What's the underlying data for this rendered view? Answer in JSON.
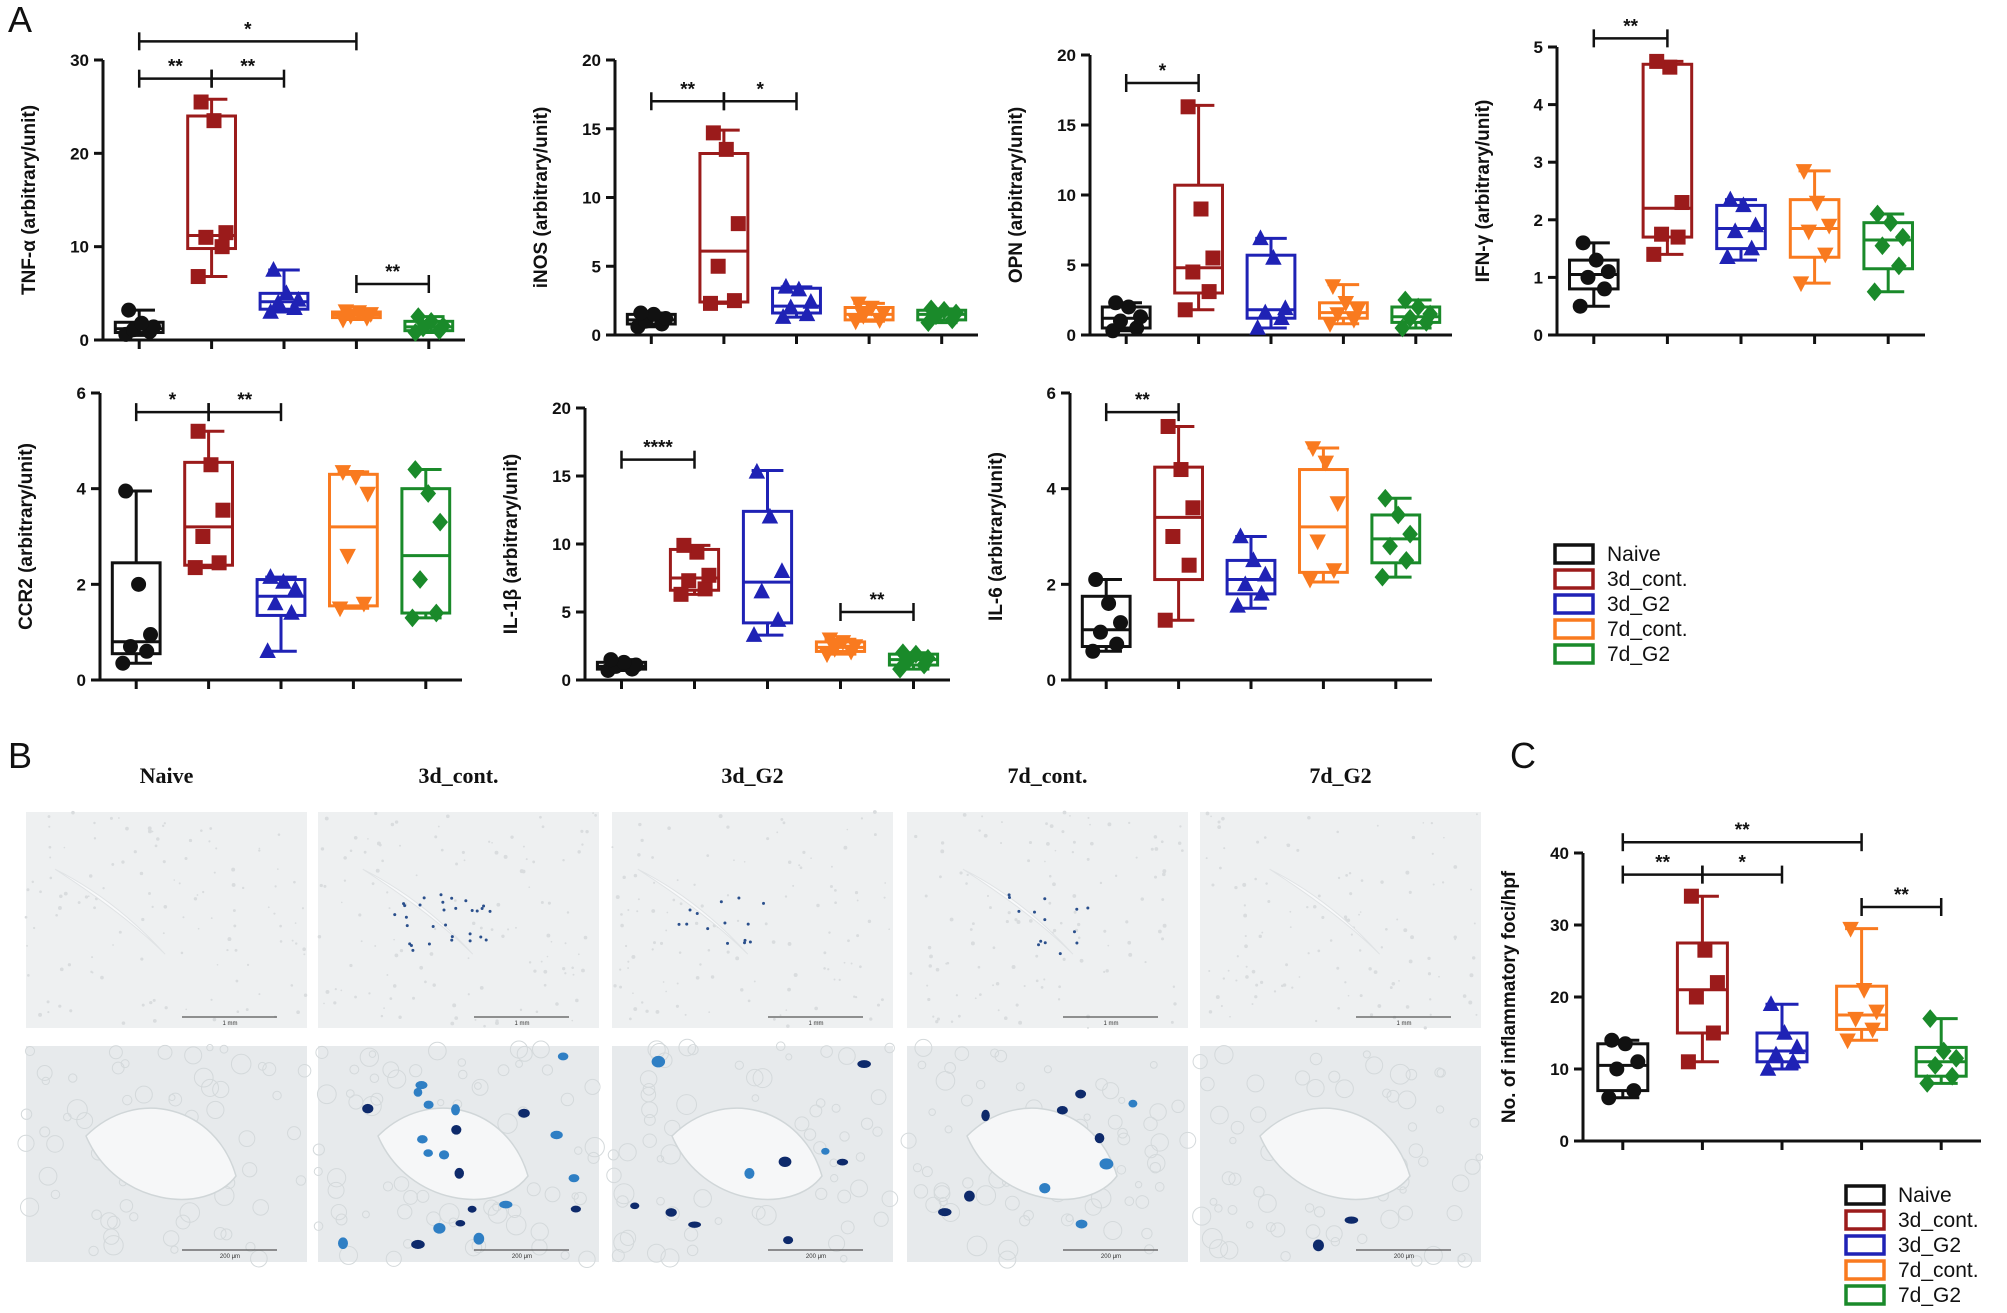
{
  "panels": {
    "A": "A",
    "B": "B",
    "C": "C"
  },
  "colors": {
    "Naive": "#111111",
    "3d_cont.": "#9b1b1b",
    "3d_G2": "#1f22b5",
    "7d_cont.": "#f97a1f",
    "7d_G2": "#1a8a2a"
  },
  "legend_A": [
    "Naive",
    "3d_cont.",
    "3d_G2",
    "7d_cont.",
    "7d_G2"
  ],
  "legend_C": [
    "Naive",
    "3d_cont.",
    "3d_G2",
    "7d_cont.",
    "7d_G2"
  ],
  "micrographs": {
    "titles": [
      "Naive",
      "3d_cont.",
      "3d_G2",
      "7d_cont.",
      "7d_G2"
    ],
    "scale_top": "1 mm",
    "scale_bottom": "200 μm"
  },
  "chart_data": [
    {
      "id": "tnf",
      "type": "box",
      "ylabel": "TNF-α (arbitrary/unit)",
      "ylim": [
        0,
        30
      ],
      "yticks": [
        0,
        10,
        20,
        30
      ],
      "groups": [
        {
          "name": "Naive",
          "marker": "circle",
          "min": 0.5,
          "q1": 0.8,
          "median": 1.2,
          "q3": 1.9,
          "max": 3.2,
          "points": [
            0.6,
            0.9,
            1.1,
            1.4,
            1.8,
            3.2
          ]
        },
        {
          "name": "3d_cont.",
          "marker": "square",
          "min": 6.8,
          "q1": 9.8,
          "median": 11.2,
          "q3": 24.0,
          "max": 25.8,
          "points": [
            6.8,
            10.0,
            11.0,
            11.5,
            23.5,
            25.5
          ]
        },
        {
          "name": "3d_G2",
          "marker": "triangle-up",
          "min": 3.0,
          "q1": 3.3,
          "median": 4.1,
          "q3": 5.0,
          "max": 7.5,
          "points": [
            3.0,
            3.4,
            4.0,
            4.3,
            5.0,
            7.5
          ]
        },
        {
          "name": "7d_cont.",
          "marker": "triangle-down",
          "min": 2.2,
          "q1": 2.4,
          "median": 2.7,
          "q3": 3.0,
          "max": 3.1,
          "points": [
            2.2,
            2.4,
            2.6,
            2.8,
            3.0,
            3.1
          ]
        },
        {
          "name": "7d_G2",
          "marker": "diamond",
          "min": 0.8,
          "q1": 1.0,
          "median": 1.4,
          "q3": 2.0,
          "max": 2.5,
          "points": [
            0.8,
            1.0,
            1.3,
            1.5,
            2.0,
            2.5
          ]
        }
      ],
      "significance": [
        {
          "from": 0,
          "to": 1,
          "label": "**",
          "y": 28.0
        },
        {
          "from": 1,
          "to": 2,
          "label": "**",
          "y": 28.0
        },
        {
          "from": 0,
          "to": 3,
          "label": "*",
          "y": 32.0
        },
        {
          "from": 3,
          "to": 4,
          "label": "**",
          "y": 6.0
        }
      ]
    },
    {
      "id": "inos",
      "type": "box",
      "ylabel": "iNOS (arbitrary/unit)",
      "ylim": [
        0,
        20
      ],
      "yticks": [
        0,
        5,
        10,
        15,
        20
      ],
      "groups": [
        {
          "name": "Naive",
          "marker": "circle",
          "min": 0.6,
          "q1": 0.8,
          "median": 1.1,
          "q3": 1.5,
          "max": 1.6,
          "points": [
            0.6,
            0.8,
            1.0,
            1.2,
            1.5,
            1.6
          ]
        },
        {
          "name": "3d_cont.",
          "marker": "square",
          "min": 2.3,
          "q1": 2.4,
          "median": 6.1,
          "q3": 13.2,
          "max": 14.9,
          "points": [
            2.3,
            2.5,
            5.0,
            8.1,
            13.5,
            14.7
          ]
        },
        {
          "name": "3d_G2",
          "marker": "triangle-up",
          "min": 1.3,
          "q1": 1.6,
          "median": 2.1,
          "q3": 3.4,
          "max": 3.5,
          "points": [
            1.3,
            1.5,
            2.0,
            2.4,
            3.3,
            3.5
          ]
        },
        {
          "name": "7d_cont.",
          "marker": "triangle-down",
          "min": 1.0,
          "q1": 1.1,
          "median": 1.5,
          "q3": 2.0,
          "max": 2.3,
          "points": [
            1.0,
            1.1,
            1.4,
            1.6,
            2.0,
            2.3
          ]
        },
        {
          "name": "7d_G2",
          "marker": "diamond",
          "min": 0.9,
          "q1": 1.1,
          "median": 1.5,
          "q3": 1.8,
          "max": 1.9,
          "points": [
            0.9,
            1.1,
            1.4,
            1.6,
            1.8,
            1.9
          ]
        }
      ],
      "significance": [
        {
          "from": 0,
          "to": 1,
          "label": "**",
          "y": 17.0
        },
        {
          "from": 1,
          "to": 2,
          "label": "*",
          "y": 17.0
        }
      ]
    },
    {
      "id": "opn",
      "type": "box",
      "ylabel": "OPN (arbitrary/unit)",
      "ylim": [
        0,
        20
      ],
      "yticks": [
        0,
        5,
        10,
        15,
        20
      ],
      "groups": [
        {
          "name": "Naive",
          "marker": "circle",
          "min": 0.3,
          "q1": 0.5,
          "median": 1.2,
          "q3": 2.0,
          "max": 2.3,
          "points": [
            0.3,
            0.5,
            1.0,
            1.3,
            2.0,
            2.3
          ]
        },
        {
          "name": "3d_cont.",
          "marker": "square",
          "min": 1.8,
          "q1": 3.0,
          "median": 4.8,
          "q3": 10.7,
          "max": 16.4,
          "points": [
            1.8,
            3.1,
            4.5,
            5.5,
            9.0,
            16.3
          ]
        },
        {
          "name": "3d_G2",
          "marker": "triangle-up",
          "min": 0.5,
          "q1": 1.2,
          "median": 1.8,
          "q3": 5.7,
          "max": 6.9,
          "points": [
            0.5,
            1.2,
            1.6,
            1.9,
            5.5,
            6.9
          ]
        },
        {
          "name": "7d_cont.",
          "marker": "triangle-down",
          "min": 0.8,
          "q1": 1.2,
          "median": 1.6,
          "q3": 2.3,
          "max": 3.6,
          "points": [
            0.8,
            1.1,
            1.5,
            1.8,
            2.3,
            3.5
          ]
        },
        {
          "name": "7d_G2",
          "marker": "diamond",
          "min": 0.5,
          "q1": 0.9,
          "median": 1.3,
          "q3": 2.0,
          "max": 2.5,
          "points": [
            0.5,
            0.9,
            1.2,
            1.5,
            2.0,
            2.5
          ]
        }
      ],
      "significance": [
        {
          "from": 0,
          "to": 1,
          "label": "*",
          "y": 18.0
        }
      ]
    },
    {
      "id": "ifn",
      "type": "box",
      "ylabel": "IFN-γ (arbitrary/unit)",
      "ylim": [
        0,
        5
      ],
      "yticks": [
        0,
        1,
        2,
        3,
        4,
        5
      ],
      "groups": [
        {
          "name": "Naive",
          "marker": "circle",
          "min": 0.5,
          "q1": 0.8,
          "median": 1.05,
          "q3": 1.3,
          "max": 1.6,
          "points": [
            0.5,
            0.8,
            1.0,
            1.1,
            1.3,
            1.6
          ]
        },
        {
          "name": "3d_cont.",
          "marker": "square",
          "min": 1.4,
          "q1": 1.7,
          "median": 2.2,
          "q3": 4.7,
          "max": 4.75,
          "points": [
            1.4,
            1.7,
            1.75,
            2.3,
            4.65,
            4.75
          ]
        },
        {
          "name": "3d_G2",
          "marker": "triangle-up",
          "min": 1.3,
          "q1": 1.5,
          "median": 1.85,
          "q3": 2.25,
          "max": 2.35,
          "points": [
            1.35,
            1.5,
            1.8,
            1.9,
            2.25,
            2.35
          ]
        },
        {
          "name": "7d_cont.",
          "marker": "triangle-down",
          "min": 0.9,
          "q1": 1.35,
          "median": 1.85,
          "q3": 2.35,
          "max": 2.85,
          "points": [
            0.9,
            1.4,
            1.8,
            1.9,
            2.3,
            2.85
          ]
        },
        {
          "name": "7d_G2",
          "marker": "diamond",
          "min": 0.75,
          "q1": 1.15,
          "median": 1.65,
          "q3": 1.95,
          "max": 2.1,
          "points": [
            0.75,
            1.2,
            1.55,
            1.7,
            1.95,
            2.1
          ]
        }
      ],
      "significance": [
        {
          "from": 0,
          "to": 1,
          "label": "**",
          "y": 5.15
        }
      ]
    },
    {
      "id": "ccr2",
      "type": "box",
      "ylabel": "CCR2 (arbitrary/unit)",
      "ylim": [
        0,
        6
      ],
      "yticks": [
        0,
        2,
        4,
        6
      ],
      "groups": [
        {
          "name": "Naive",
          "marker": "circle",
          "min": 0.35,
          "q1": 0.55,
          "median": 0.8,
          "q3": 2.45,
          "max": 3.95,
          "points": [
            0.35,
            0.6,
            0.7,
            0.95,
            2.0,
            3.95
          ]
        },
        {
          "name": "3d_cont.",
          "marker": "square",
          "min": 2.35,
          "q1": 2.4,
          "median": 3.2,
          "q3": 4.55,
          "max": 5.2,
          "points": [
            2.35,
            2.45,
            3.0,
            3.55,
            4.5,
            5.2
          ]
        },
        {
          "name": "3d_G2",
          "marker": "triangle-up",
          "min": 0.6,
          "q1": 1.35,
          "median": 1.75,
          "q3": 2.1,
          "max": 2.15,
          "points": [
            0.6,
            1.4,
            1.6,
            1.9,
            2.05,
            2.15
          ]
        },
        {
          "name": "7d_cont.",
          "marker": "triangle-down",
          "min": 1.5,
          "q1": 1.55,
          "median": 3.2,
          "q3": 4.3,
          "max": 4.35,
          "points": [
            1.5,
            1.6,
            2.6,
            3.9,
            4.25,
            4.35
          ]
        },
        {
          "name": "7d_G2",
          "marker": "diamond",
          "min": 1.3,
          "q1": 1.4,
          "median": 2.6,
          "q3": 4.0,
          "max": 4.4,
          "points": [
            1.3,
            1.4,
            2.1,
            3.3,
            3.9,
            4.4
          ]
        }
      ],
      "significance": [
        {
          "from": 0,
          "to": 1,
          "label": "*",
          "y": 5.6
        },
        {
          "from": 1,
          "to": 2,
          "label": "**",
          "y": 5.6
        }
      ]
    },
    {
      "id": "il1b",
      "type": "box",
      "ylabel": "IL-1β (arbitrary/unit)",
      "ylim": [
        0,
        20
      ],
      "yticks": [
        0,
        5,
        10,
        15,
        20
      ],
      "groups": [
        {
          "name": "Naive",
          "marker": "circle",
          "min": 0.7,
          "q1": 0.8,
          "median": 1.0,
          "q3": 1.3,
          "max": 1.5,
          "points": [
            0.7,
            0.8,
            1.0,
            1.1,
            1.3,
            1.5
          ]
        },
        {
          "name": "3d_cont.",
          "marker": "square",
          "min": 6.3,
          "q1": 6.6,
          "median": 7.5,
          "q3": 9.6,
          "max": 9.9,
          "points": [
            6.3,
            6.7,
            7.3,
            7.7,
            9.4,
            9.9
          ]
        },
        {
          "name": "3d_G2",
          "marker": "triangle-up",
          "min": 3.3,
          "q1": 4.2,
          "median": 7.2,
          "q3": 12.4,
          "max": 15.4,
          "points": [
            3.3,
            4.4,
            6.5,
            8.0,
            12.0,
            15.3
          ]
        },
        {
          "name": "7d_cont.",
          "marker": "triangle-down",
          "min": 1.9,
          "q1": 2.1,
          "median": 2.4,
          "q3": 2.8,
          "max": 3.0,
          "points": [
            1.9,
            2.1,
            2.3,
            2.5,
            2.8,
            3.0
          ]
        },
        {
          "name": "7d_G2",
          "marker": "diamond",
          "min": 0.8,
          "q1": 1.1,
          "median": 1.5,
          "q3": 1.9,
          "max": 2.0,
          "points": [
            0.8,
            1.1,
            1.4,
            1.6,
            1.9,
            2.0
          ]
        }
      ],
      "significance": [
        {
          "from": 0,
          "to": 1,
          "label": "****",
          "y": 16.2
        },
        {
          "from": 3,
          "to": 4,
          "label": "**",
          "y": 5.0
        }
      ]
    },
    {
      "id": "il6",
      "type": "box",
      "ylabel": "IL-6  (arbitrary/unit)",
      "ylim": [
        0,
        6
      ],
      "yticks": [
        0,
        2,
        4,
        6
      ],
      "groups": [
        {
          "name": "Naive",
          "marker": "circle",
          "min": 0.6,
          "q1": 0.7,
          "median": 1.05,
          "q3": 1.75,
          "max": 2.1,
          "points": [
            0.6,
            0.75,
            1.0,
            1.2,
            1.6,
            2.1
          ]
        },
        {
          "name": "3d_cont.",
          "marker": "square",
          "min": 1.25,
          "q1": 2.1,
          "median": 3.4,
          "q3": 4.45,
          "max": 5.3,
          "points": [
            1.25,
            2.4,
            3.0,
            3.6,
            4.4,
            5.3
          ]
        },
        {
          "name": "3d_G2",
          "marker": "triangle-up",
          "min": 1.5,
          "q1": 1.8,
          "median": 2.1,
          "q3": 2.5,
          "max": 3.0,
          "points": [
            1.55,
            1.8,
            2.0,
            2.2,
            2.5,
            3.0
          ]
        },
        {
          "name": "7d_cont.",
          "marker": "triangle-down",
          "min": 2.05,
          "q1": 2.25,
          "median": 3.2,
          "q3": 4.4,
          "max": 4.85,
          "points": [
            2.1,
            2.3,
            2.9,
            3.7,
            4.55,
            4.85
          ]
        },
        {
          "name": "7d_G2",
          "marker": "diamond",
          "min": 2.15,
          "q1": 2.45,
          "median": 2.95,
          "q3": 3.45,
          "max": 3.8,
          "points": [
            2.15,
            2.5,
            2.8,
            3.05,
            3.45,
            3.8
          ]
        }
      ],
      "significance": [
        {
          "from": 0,
          "to": 1,
          "label": "**",
          "y": 5.6
        }
      ]
    },
    {
      "id": "foci",
      "type": "box",
      "ylabel": "No. of inflammatory foci/hpf",
      "ylim": [
        0,
        40
      ],
      "yticks": [
        0,
        10,
        20,
        30,
        40
      ],
      "groups": [
        {
          "name": "Naive",
          "marker": "circle",
          "min": 6.0,
          "q1": 7.0,
          "median": 10.5,
          "q3": 13.5,
          "max": 14.0,
          "points": [
            6.0,
            7.0,
            10.0,
            11.0,
            13.5,
            14.0
          ]
        },
        {
          "name": "3d_cont.",
          "marker": "square",
          "min": 11.0,
          "q1": 15.0,
          "median": 21.0,
          "q3": 27.5,
          "max": 34.0,
          "points": [
            11.0,
            15.0,
            20.0,
            22.0,
            26.5,
            34.0
          ]
        },
        {
          "name": "3d_G2",
          "marker": "triangle-up",
          "min": 10.0,
          "q1": 11.0,
          "median": 12.5,
          "q3": 15.0,
          "max": 19.0,
          "points": [
            10.0,
            11.0,
            12.0,
            13.0,
            15.0,
            19.0
          ]
        },
        {
          "name": "7d_cont.",
          "marker": "triangle-down",
          "min": 14.0,
          "q1": 15.5,
          "median": 17.5,
          "q3": 21.5,
          "max": 29.5,
          "points": [
            14.0,
            15.5,
            17.0,
            18.0,
            21.0,
            29.5
          ]
        },
        {
          "name": "7d_G2",
          "marker": "diamond",
          "min": 8.0,
          "q1": 9.0,
          "median": 11.0,
          "q3": 13.0,
          "max": 17.0,
          "points": [
            8.0,
            9.0,
            10.5,
            11.5,
            12.5,
            17.0
          ]
        }
      ],
      "significance": [
        {
          "from": 0,
          "to": 1,
          "label": "**",
          "y": 37.0
        },
        {
          "from": 1,
          "to": 2,
          "label": "*",
          "y": 37.0
        },
        {
          "from": 0,
          "to": 3,
          "label": "**",
          "y": 41.5
        },
        {
          "from": 3,
          "to": 4,
          "label": "**",
          "y": 32.5
        }
      ]
    }
  ]
}
